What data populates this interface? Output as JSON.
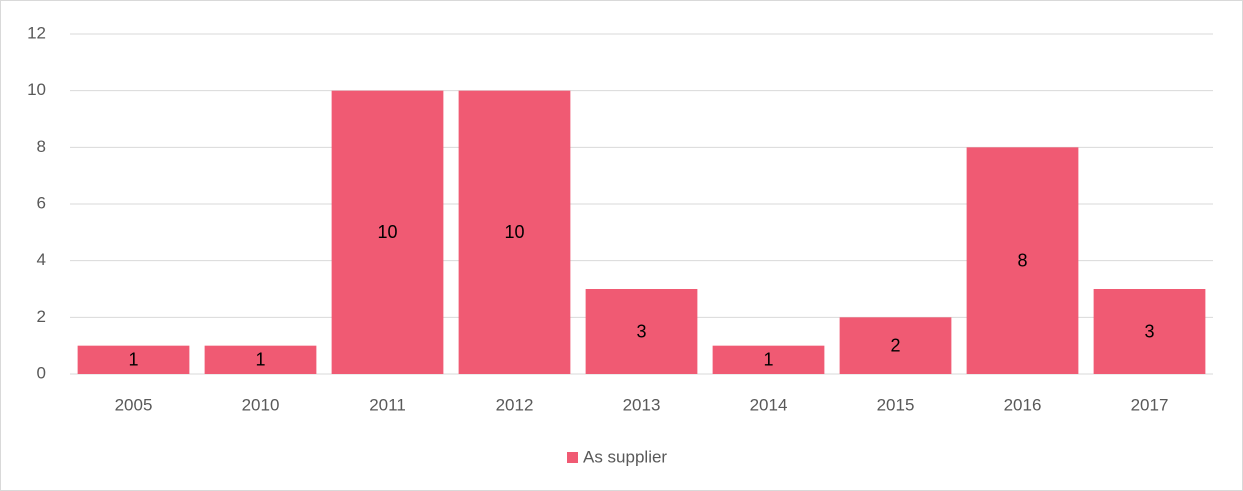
{
  "chart_data": {
    "type": "bar",
    "categories": [
      "2005",
      "2010",
      "2011",
      "2012",
      "2013",
      "2014",
      "2015",
      "2016",
      "2017"
    ],
    "series": [
      {
        "name": "As supplier",
        "color": "#f05a73",
        "values": [
          1,
          1,
          10,
          10,
          3,
          1,
          2,
          8,
          3
        ]
      }
    ],
    "ylim": [
      0,
      12
    ],
    "yticks": [
      0,
      2,
      4,
      6,
      8,
      10,
      12
    ],
    "grid": true,
    "legend": "bottom",
    "data_labels": true
  }
}
